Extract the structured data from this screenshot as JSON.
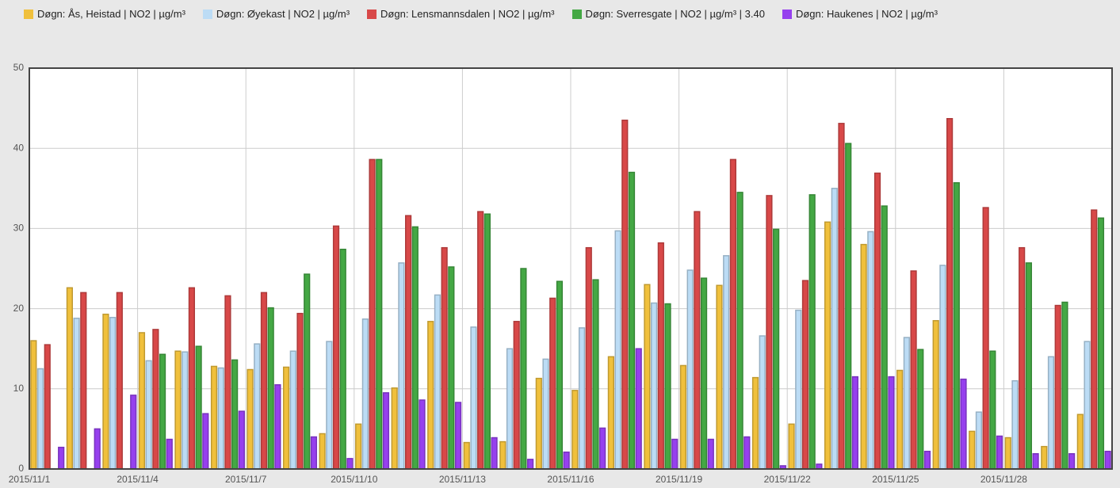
{
  "chart_data": {
    "type": "bar",
    "categories": [
      "2015/11/1",
      null,
      null,
      "2015/11/4",
      null,
      null,
      "2015/11/7",
      null,
      null,
      "2015/11/10",
      null,
      null,
      "2015/11/13",
      null,
      null,
      "2015/11/16",
      null,
      null,
      "2015/11/19",
      null,
      null,
      "2015/11/22",
      null,
      null,
      "2015/11/25",
      null,
      null,
      "2015/11/28",
      null,
      null
    ],
    "series": [
      {
        "name": "Døgn: Ås, Heistad | NO2 | µg/m³",
        "color": "#f0c03c",
        "values": [
          16,
          22.6,
          19.3,
          17,
          14.7,
          12.8,
          12.4,
          12.7,
          4.4,
          5.6,
          10.1,
          18.4,
          3.3,
          3.4,
          11.3,
          9.8,
          14,
          23,
          12.9,
          22.9,
          11.4,
          5.6,
          30.8,
          28,
          12.3,
          18.5,
          4.7,
          3.9,
          2.8,
          6.8
        ]
      },
      {
        "name": "Døgn: Øyekast | NO2 | µg/m³",
        "color": "#bcdcf5",
        "values": [
          12.5,
          18.8,
          18.9,
          13.5,
          14.6,
          12.6,
          15.6,
          14.7,
          15.9,
          18.7,
          25.7,
          21.7,
          17.7,
          15,
          13.7,
          17.6,
          29.7,
          20.7,
          24.8,
          26.6,
          16.6,
          19.8,
          35,
          29.6,
          16.4,
          25.4,
          7.1,
          11,
          14,
          15.9
        ]
      },
      {
        "name": "Døgn: Lensmannsdalen | NO2 | µg/m³",
        "color": "#d84848",
        "values": [
          15.5,
          22,
          22,
          17.4,
          22.6,
          21.6,
          22,
          19.4,
          30.3,
          38.6,
          31.6,
          27.6,
          32.1,
          18.4,
          21.3,
          27.6,
          43.5,
          28.2,
          32.1,
          38.6,
          34.1,
          23.5,
          43.1,
          36.9,
          24.7,
          43.7,
          32.6,
          27.6,
          20.4,
          32.3
        ]
      },
      {
        "name": "Døgn: Sverresgate  | NO2 | µg/m³ | 3.40",
        "color": "#44a844",
        "values": [
          null,
          null,
          null,
          14.3,
          15.3,
          13.6,
          20.1,
          24.3,
          27.4,
          38.6,
          30.2,
          25.2,
          31.8,
          25,
          23.4,
          23.6,
          37,
          20.6,
          23.8,
          34.5,
          29.9,
          34.2,
          40.6,
          32.8,
          14.9,
          35.7,
          14.7,
          25.7,
          20.8,
          31.3
        ]
      },
      {
        "name": "Døgn: Haukenes | NO2 | µg/m³",
        "color": "#9640ee",
        "values": [
          2.7,
          5,
          9.2,
          3.7,
          6.9,
          7.2,
          10.5,
          4,
          1.3,
          9.5,
          8.6,
          8.3,
          3.9,
          1.2,
          2.1,
          5.1,
          15,
          3.7,
          3.7,
          4,
          0.4,
          0.6,
          11.5,
          11.5,
          2.2,
          11.2,
          4.1,
          1.9,
          1.9,
          2.2
        ]
      }
    ],
    "ylim": [
      0,
      50
    ],
    "yticks": [
      0,
      10,
      20,
      30,
      40,
      50
    ],
    "grid": true,
    "legend": "top"
  }
}
